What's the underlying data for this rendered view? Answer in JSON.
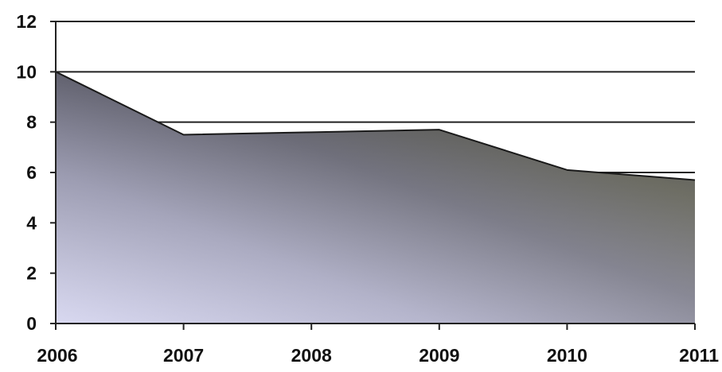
{
  "chart_data": {
    "type": "area",
    "categories": [
      "2006",
      "2007",
      "2008",
      "2009",
      "2010",
      "2011"
    ],
    "series": [
      {
        "values": [
          10,
          7.5,
          7.6,
          7.7,
          6.1,
          5.7
        ]
      }
    ],
    "y_ticks": [
      "0",
      "2",
      "4",
      "6",
      "8",
      "10",
      "12"
    ],
    "ylim": [
      0,
      12
    ],
    "grid": true,
    "legend": "none",
    "colors": {
      "fill_light": "#c9c9e6",
      "fill_mid": "#8b8ba3",
      "fill_dark": "#4a4a55",
      "fill_olive": "#7a7a62",
      "line": "#1a1a1a"
    }
  }
}
